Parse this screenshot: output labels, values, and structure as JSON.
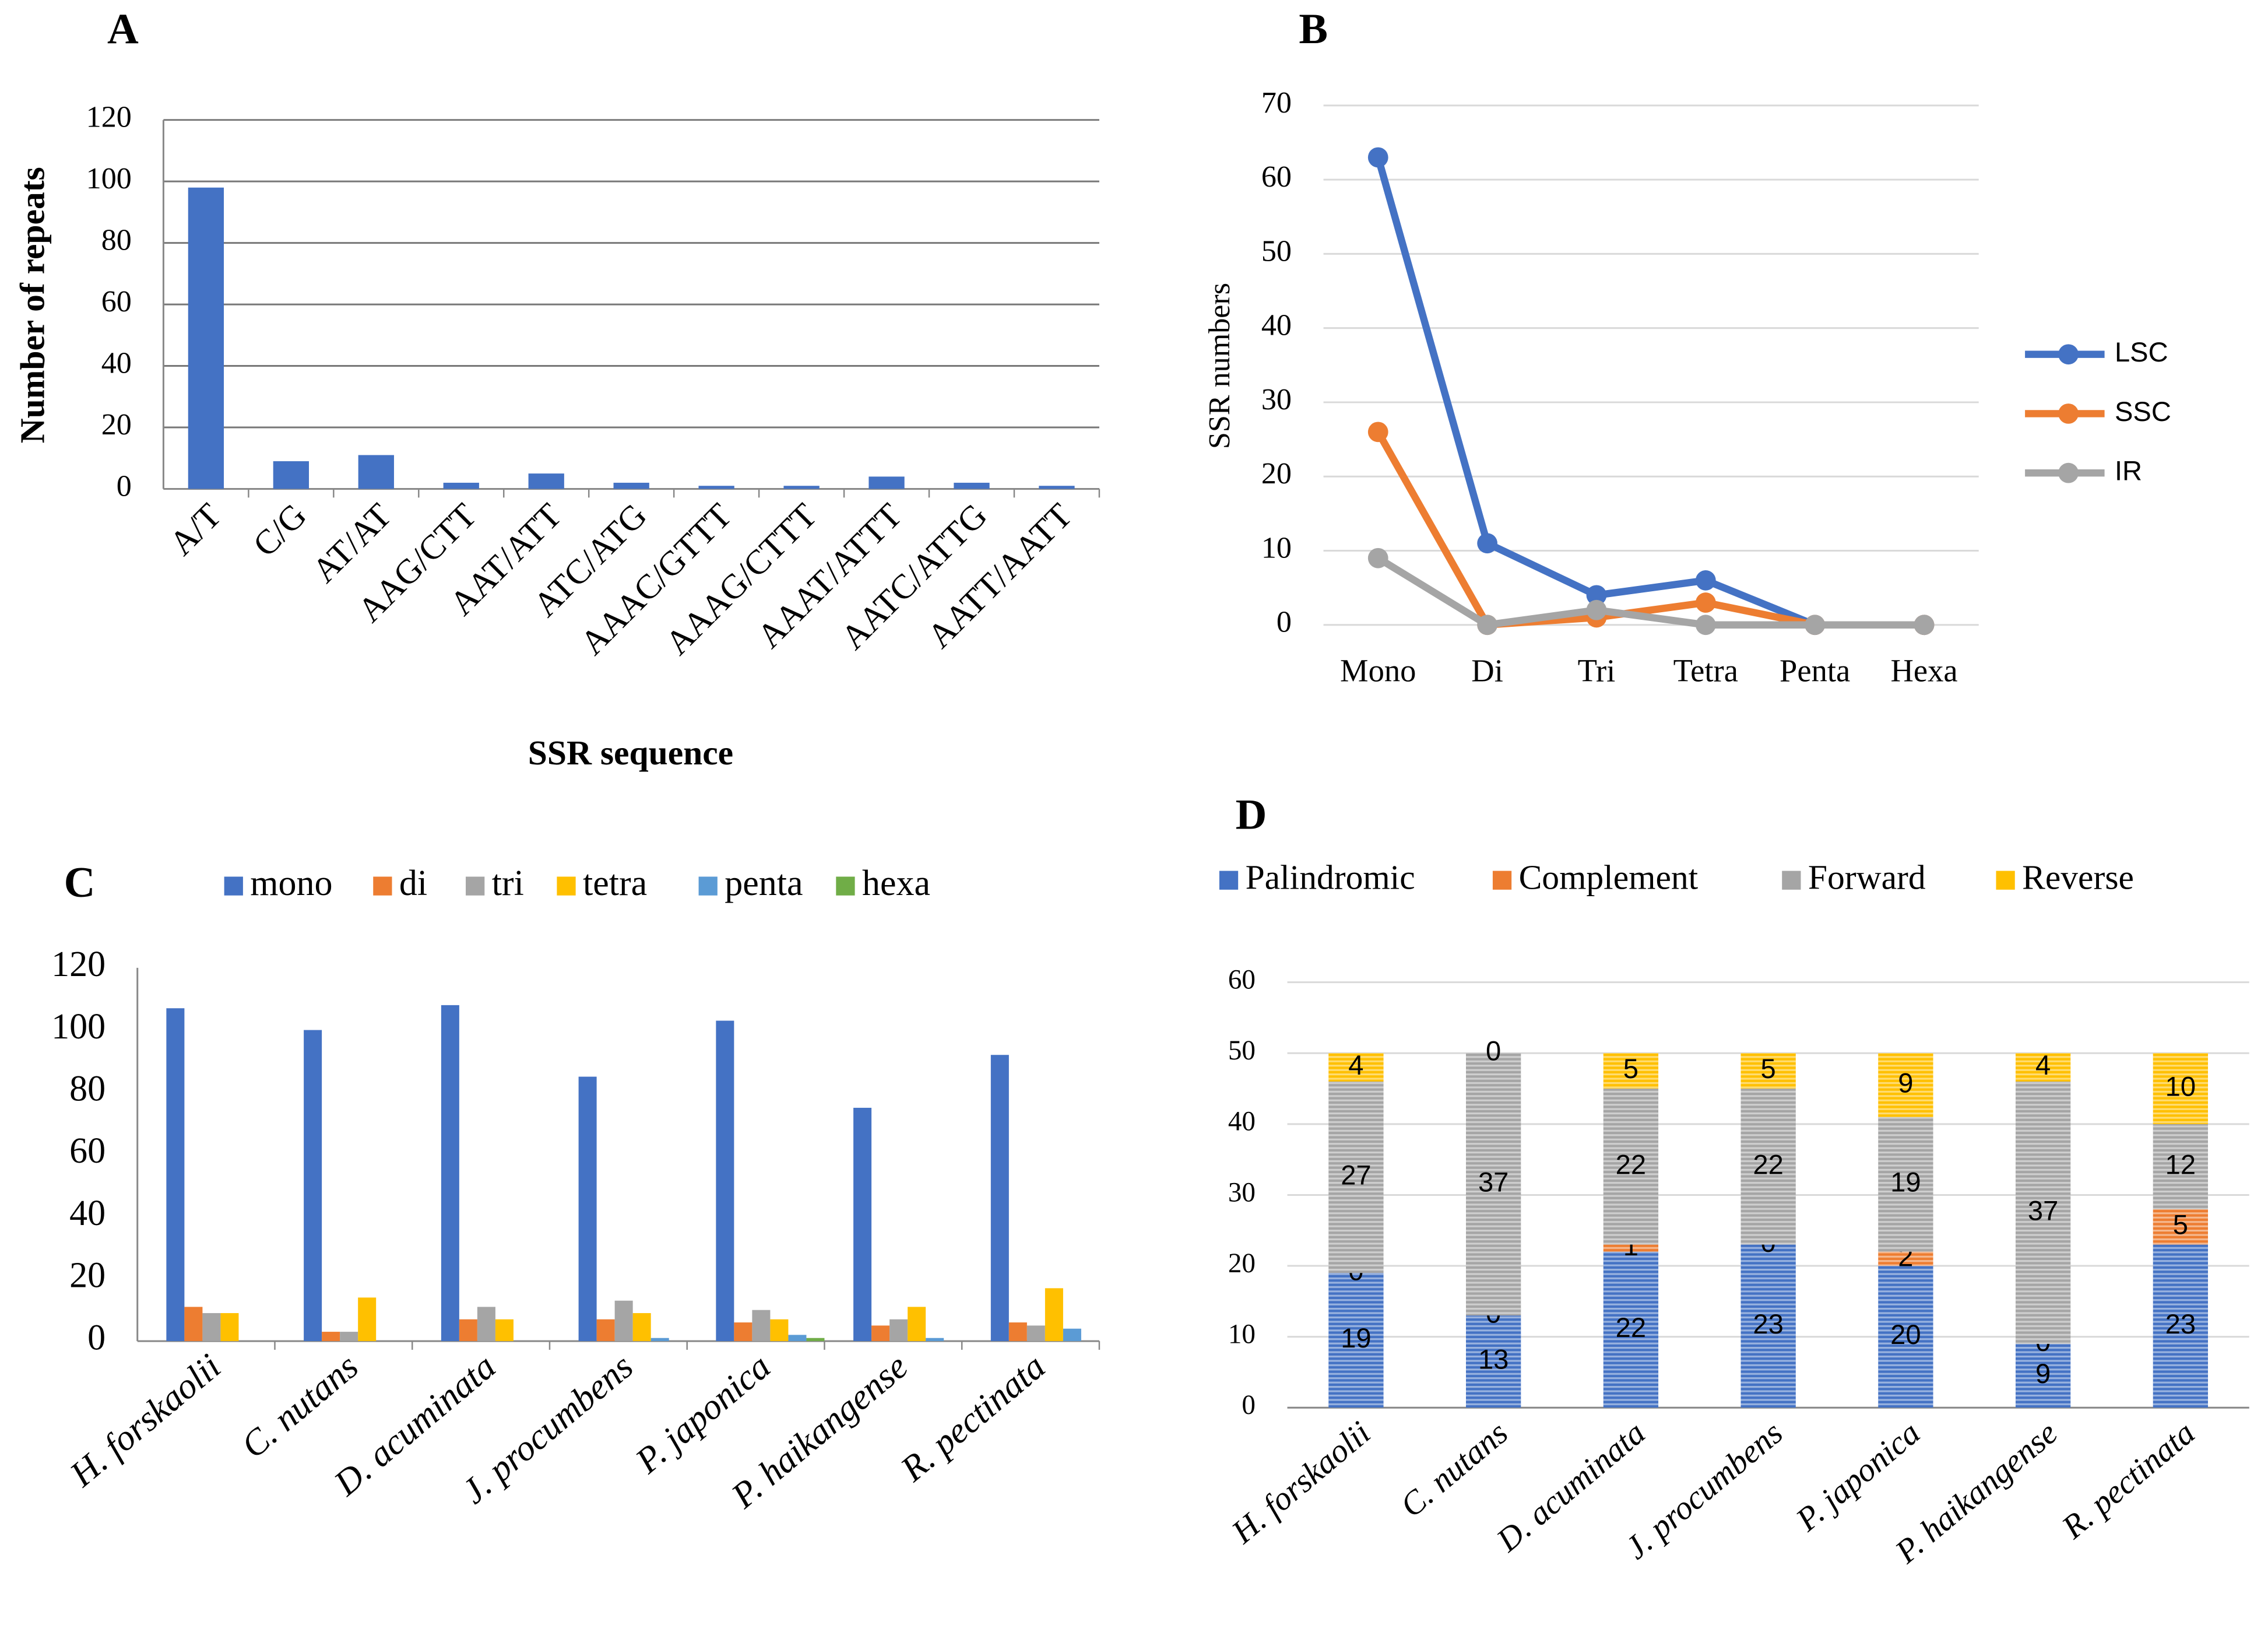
{
  "chart_data": [
    {
      "panel": "A",
      "type": "bar",
      "x_label": "SSR sequence",
      "y_label": "Number of repeats",
      "categories": [
        "A/T",
        "C/G",
        "AT/AT",
        "AAG/CTT",
        "AAT/ATT",
        "ATC/ATG",
        "AAAC/GTTT",
        "AAAG/CTTT",
        "AAAT/ATTT",
        "AATC/ATTG",
        "AATT/AATT"
      ],
      "values": [
        98,
        9,
        11,
        2,
        5,
        2,
        1,
        1,
        4,
        2,
        1
      ],
      "color": "#4472c4",
      "ylim": [
        0,
        120
      ],
      "yticks": [
        0,
        20,
        40,
        60,
        80,
        100,
        120
      ],
      "grid": true
    },
    {
      "panel": "B",
      "type": "line",
      "y_label": "SSR numbers",
      "categories": [
        "Mono",
        "Di",
        "Tri",
        "Tetra",
        "Penta",
        "Hexa"
      ],
      "series": [
        {
          "name": "LSC",
          "color": "#4472c4",
          "values": [
            63,
            11,
            4,
            6,
            0,
            0
          ]
        },
        {
          "name": "SSC",
          "color": "#ed7d31",
          "values": [
            26,
            0,
            1,
            3,
            0,
            0
          ]
        },
        {
          "name": "IR",
          "color": "#a5a5a5",
          "values": [
            9,
            0,
            2,
            0,
            0,
            0
          ]
        }
      ],
      "ylim": [
        0,
        70
      ],
      "yticks": [
        0,
        10,
        20,
        30,
        40,
        50,
        60,
        70
      ],
      "grid": true,
      "legend": "right"
    },
    {
      "panel": "C",
      "type": "grouped_bar",
      "categories": [
        "H. forskaolii",
        "C. nutans",
        "D. acuminata",
        "J. procumbens",
        "P. japonica",
        "P. haikangense",
        "R. pectinata"
      ],
      "series": [
        {
          "name": "mono",
          "color": "#4472c4",
          "values": [
            107,
            100,
            108,
            85,
            103,
            75,
            92
          ]
        },
        {
          "name": "di",
          "color": "#ed7d31",
          "values": [
            11,
            3,
            7,
            7,
            6,
            5,
            6
          ]
        },
        {
          "name": "tri",
          "color": "#a5a5a5",
          "values": [
            9,
            3,
            11,
            13,
            10,
            7,
            5
          ]
        },
        {
          "name": "tetra",
          "color": "#ffc000",
          "values": [
            9,
            14,
            7,
            9,
            7,
            11,
            17
          ]
        },
        {
          "name": "penta",
          "color": "#5b9bd5",
          "values": [
            0,
            0,
            0,
            1,
            2,
            1,
            4
          ]
        },
        {
          "name": "hexa",
          "color": "#70ad47",
          "values": [
            0,
            0,
            0,
            0,
            1,
            0,
            0
          ]
        }
      ],
      "ylim": [
        0,
        120
      ],
      "yticks": [
        0,
        20,
        40,
        60,
        80,
        100,
        120
      ],
      "grid": false,
      "legend": "top"
    },
    {
      "panel": "D",
      "type": "stacked_bar",
      "categories": [
        "H. forskaolii",
        "C. nutans",
        "D. acuminata",
        "J. procumbens",
        "P. japonica",
        "P. haikangense",
        "R. pectinata"
      ],
      "series": [
        {
          "name": "Palindromic",
          "color": "#4472c4",
          "values": [
            19,
            13,
            22,
            23,
            20,
            9,
            23
          ]
        },
        {
          "name": "Complement",
          "color": "#ed7d31",
          "values": [
            0,
            0,
            1,
            0,
            2,
            0,
            5
          ]
        },
        {
          "name": "Forward",
          "color": "#a5a5a5",
          "values": [
            27,
            37,
            22,
            22,
            19,
            37,
            12
          ]
        },
        {
          "name": "Reverse",
          "color": "#ffc000",
          "values": [
            4,
            0,
            5,
            5,
            9,
            4,
            10
          ]
        }
      ],
      "ylim": [
        0,
        60
      ],
      "yticks": [
        0,
        10,
        20,
        30,
        40,
        50,
        60
      ],
      "grid": true,
      "legend": "top"
    }
  ]
}
